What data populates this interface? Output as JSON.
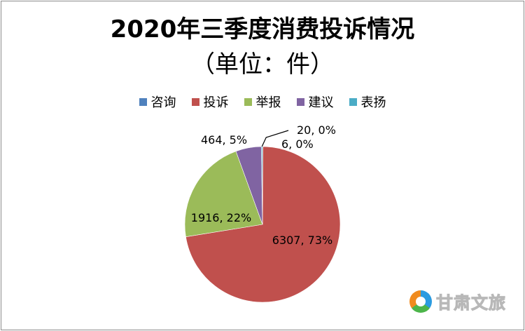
{
  "chart_data": {
    "type": "pie",
    "title_line1": "2020年三季度消费投诉情况",
    "title_line2": "（单位：件）",
    "legend_position": "top",
    "slices": [
      {
        "name": "咨询",
        "value": 6,
        "percent": "0%",
        "label": "6, 0%",
        "color": "#4f81bd"
      },
      {
        "name": "投诉",
        "value": 6307,
        "percent": "73%",
        "label": "6307, 73%",
        "color": "#c0504d"
      },
      {
        "name": "举报",
        "value": 1916,
        "percent": "22%",
        "label": "1916, 22%",
        "color": "#9bbb59"
      },
      {
        "name": "建议",
        "value": 464,
        "percent": "5%",
        "label": "464, 5%",
        "color": "#8064a2"
      },
      {
        "name": "表扬",
        "value": 20,
        "percent": "0%",
        "label": "20, 0%",
        "color": "#4bacc6"
      }
    ]
  },
  "watermark": {
    "text": "甘肃文旅"
  }
}
